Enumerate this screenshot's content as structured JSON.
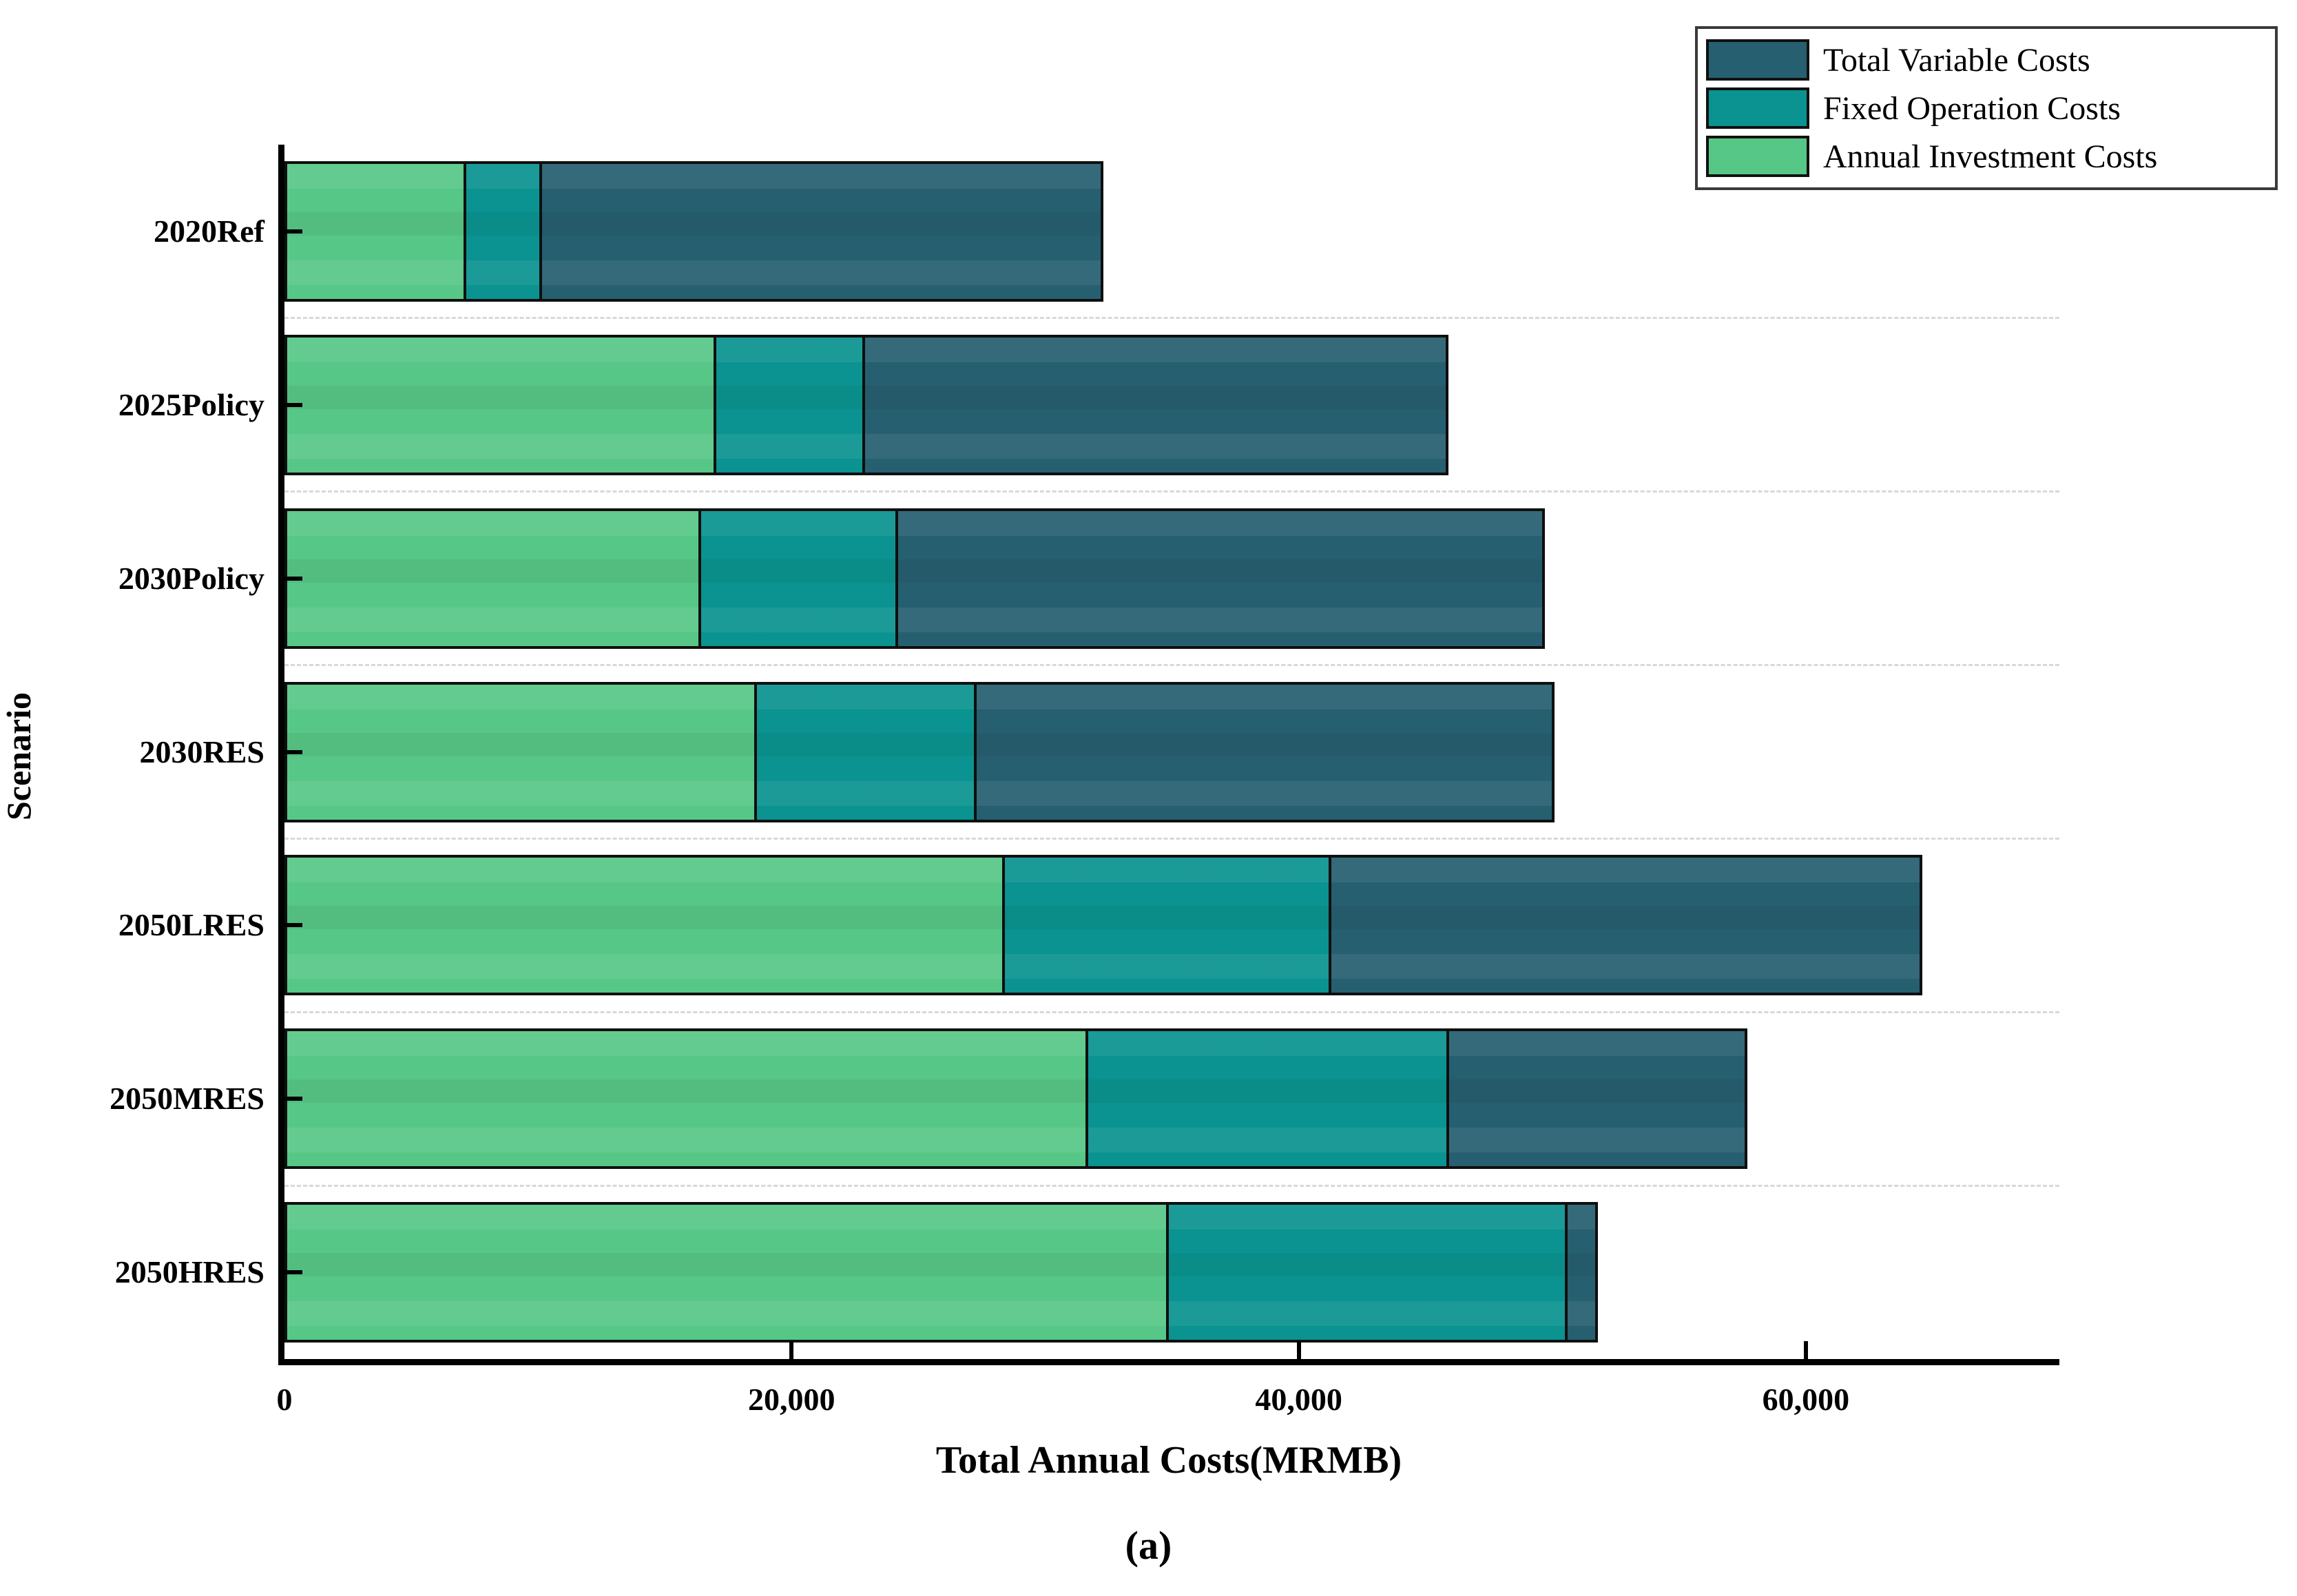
{
  "figure": {
    "caption": "(a)"
  },
  "axes": {
    "x_title": "Total Annual Costs(MRMB)",
    "y_title": "Scenario"
  },
  "legend": {
    "entries": [
      {
        "label": "Total Variable Costs",
        "color": "#265f70"
      },
      {
        "label": "Fixed Operation Costs",
        "color": "#0a9390"
      },
      {
        "label": "Annual Investment Costs",
        "color": "#57c787"
      }
    ]
  },
  "chart_data": {
    "type": "bar",
    "orientation": "horizontal",
    "stacked": true,
    "title": "",
    "xlabel": "Total Annual Costs(MRMB)",
    "ylabel": "Scenario",
    "xlim": [
      0,
      70000
    ],
    "xticks": [
      0,
      20000,
      40000,
      60000
    ],
    "xtick_labels": [
      "0",
      "20,000",
      "40,000",
      "60,000"
    ],
    "grid": "dashed horizontal lines between category rows",
    "legend_position": "top-right",
    "categories": [
      "2020Ref",
      "2025Policy",
      "2030Policy",
      "2030RES",
      "2050LRES",
      "2050MRES",
      "2050HRES"
    ],
    "series": [
      {
        "name": "Annual Investment Costs",
        "color": "#57c787",
        "values": [
          7000,
          16900,
          16300,
          18500,
          28300,
          31600,
          34800
        ]
      },
      {
        "name": "Fixed Operation Costs",
        "color": "#0a9390",
        "values": [
          3000,
          5900,
          7800,
          8700,
          12900,
          14300,
          15800
        ]
      },
      {
        "name": "Total Variable Costs",
        "color": "#265f70",
        "values": [
          22300,
          23100,
          25600,
          22900,
          23400,
          11800,
          1200
        ]
      }
    ],
    "stack_totals": [
      32300,
      45900,
      49700,
      50100,
      64600,
      57700,
      51800
    ]
  }
}
